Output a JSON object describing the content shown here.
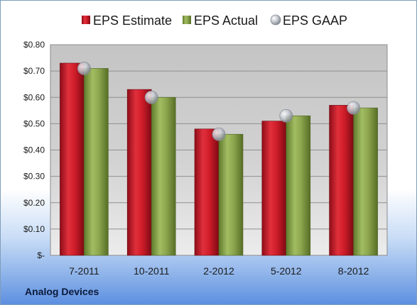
{
  "chart_data": {
    "type": "bar",
    "categories": [
      "7-2011",
      "10-2011",
      "2-2012",
      "5-2012",
      "8-2012"
    ],
    "series": [
      {
        "name": "EPS Estimate",
        "values": [
          0.73,
          0.63,
          0.48,
          0.51,
          0.57
        ],
        "color": "#c8182a"
      },
      {
        "name": "EPS Actual",
        "values": [
          0.71,
          0.6,
          0.46,
          0.53,
          0.56
        ],
        "color": "#8faa4f"
      },
      {
        "name": "EPS GAAP",
        "values": [
          0.71,
          0.6,
          0.46,
          0.53,
          0.56
        ],
        "color": "#b8bcc4",
        "marker": "sphere"
      }
    ],
    "ylim": [
      0,
      0.8
    ],
    "yticks": [
      {
        "value": 0.0,
        "label": "$-"
      },
      {
        "value": 0.1,
        "label": "$0.10"
      },
      {
        "value": 0.2,
        "label": "$0.20"
      },
      {
        "value": 0.3,
        "label": "$0.30"
      },
      {
        "value": 0.4,
        "label": "$0.40"
      },
      {
        "value": 0.5,
        "label": "$0.50"
      },
      {
        "value": 0.6,
        "label": "$0.60"
      },
      {
        "value": 0.7,
        "label": "$0.70"
      },
      {
        "value": 0.8,
        "label": "$0.80"
      }
    ],
    "grid": true,
    "legend": "top-center"
  },
  "company": "Analog Devices"
}
